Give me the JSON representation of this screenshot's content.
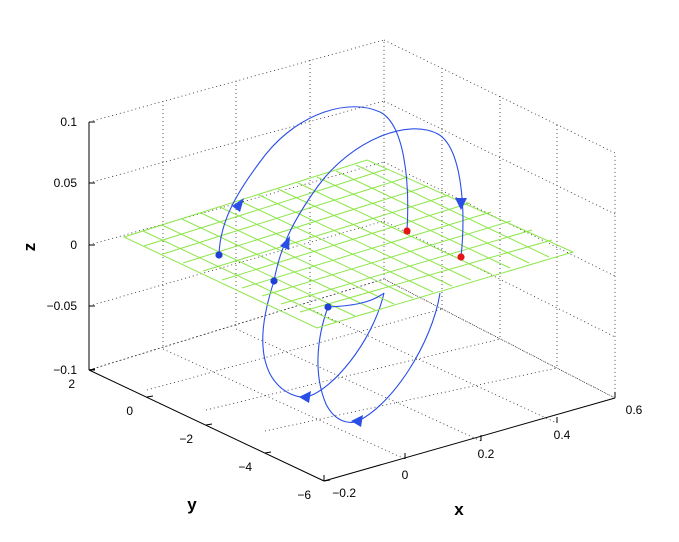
{
  "chart_data": {
    "type": "line",
    "plot_kind": "3d-trajectories",
    "xlabel": "x",
    "ylabel": "y",
    "zlabel": "z",
    "x_ticks": [
      "−0.2",
      "0",
      "0.2",
      "0.4",
      "0.6"
    ],
    "y_ticks": [
      "2",
      "0",
      "−2",
      "−4",
      "−6"
    ],
    "z_ticks": [
      "0.1",
      "0.05",
      "0",
      "−0.05",
      "−0.1"
    ],
    "xlim": [
      -0.2,
      0.6
    ],
    "ylim": [
      -6,
      2
    ],
    "zlim": [
      -0.1,
      0.1
    ],
    "grid": true,
    "plane": {
      "z": 0,
      "color": "#8ee64a"
    },
    "trajectory_color": "#2a4fe6",
    "start_point_color": "#1f3fd6",
    "end_point_color": "#e61515",
    "start_points": [
      {
        "x": 0.0,
        "y": 0.0,
        "z": 0
      },
      {
        "x": 0.05,
        "y": -1.5,
        "z": 0
      },
      {
        "x": 0.03,
        "y": -4.0,
        "z": 0
      }
    ],
    "end_points": [
      {
        "x": 0.43,
        "y": 0.0,
        "z": 0
      },
      {
        "x": 0.45,
        "y": -1.5,
        "z": 0
      }
    ]
  }
}
